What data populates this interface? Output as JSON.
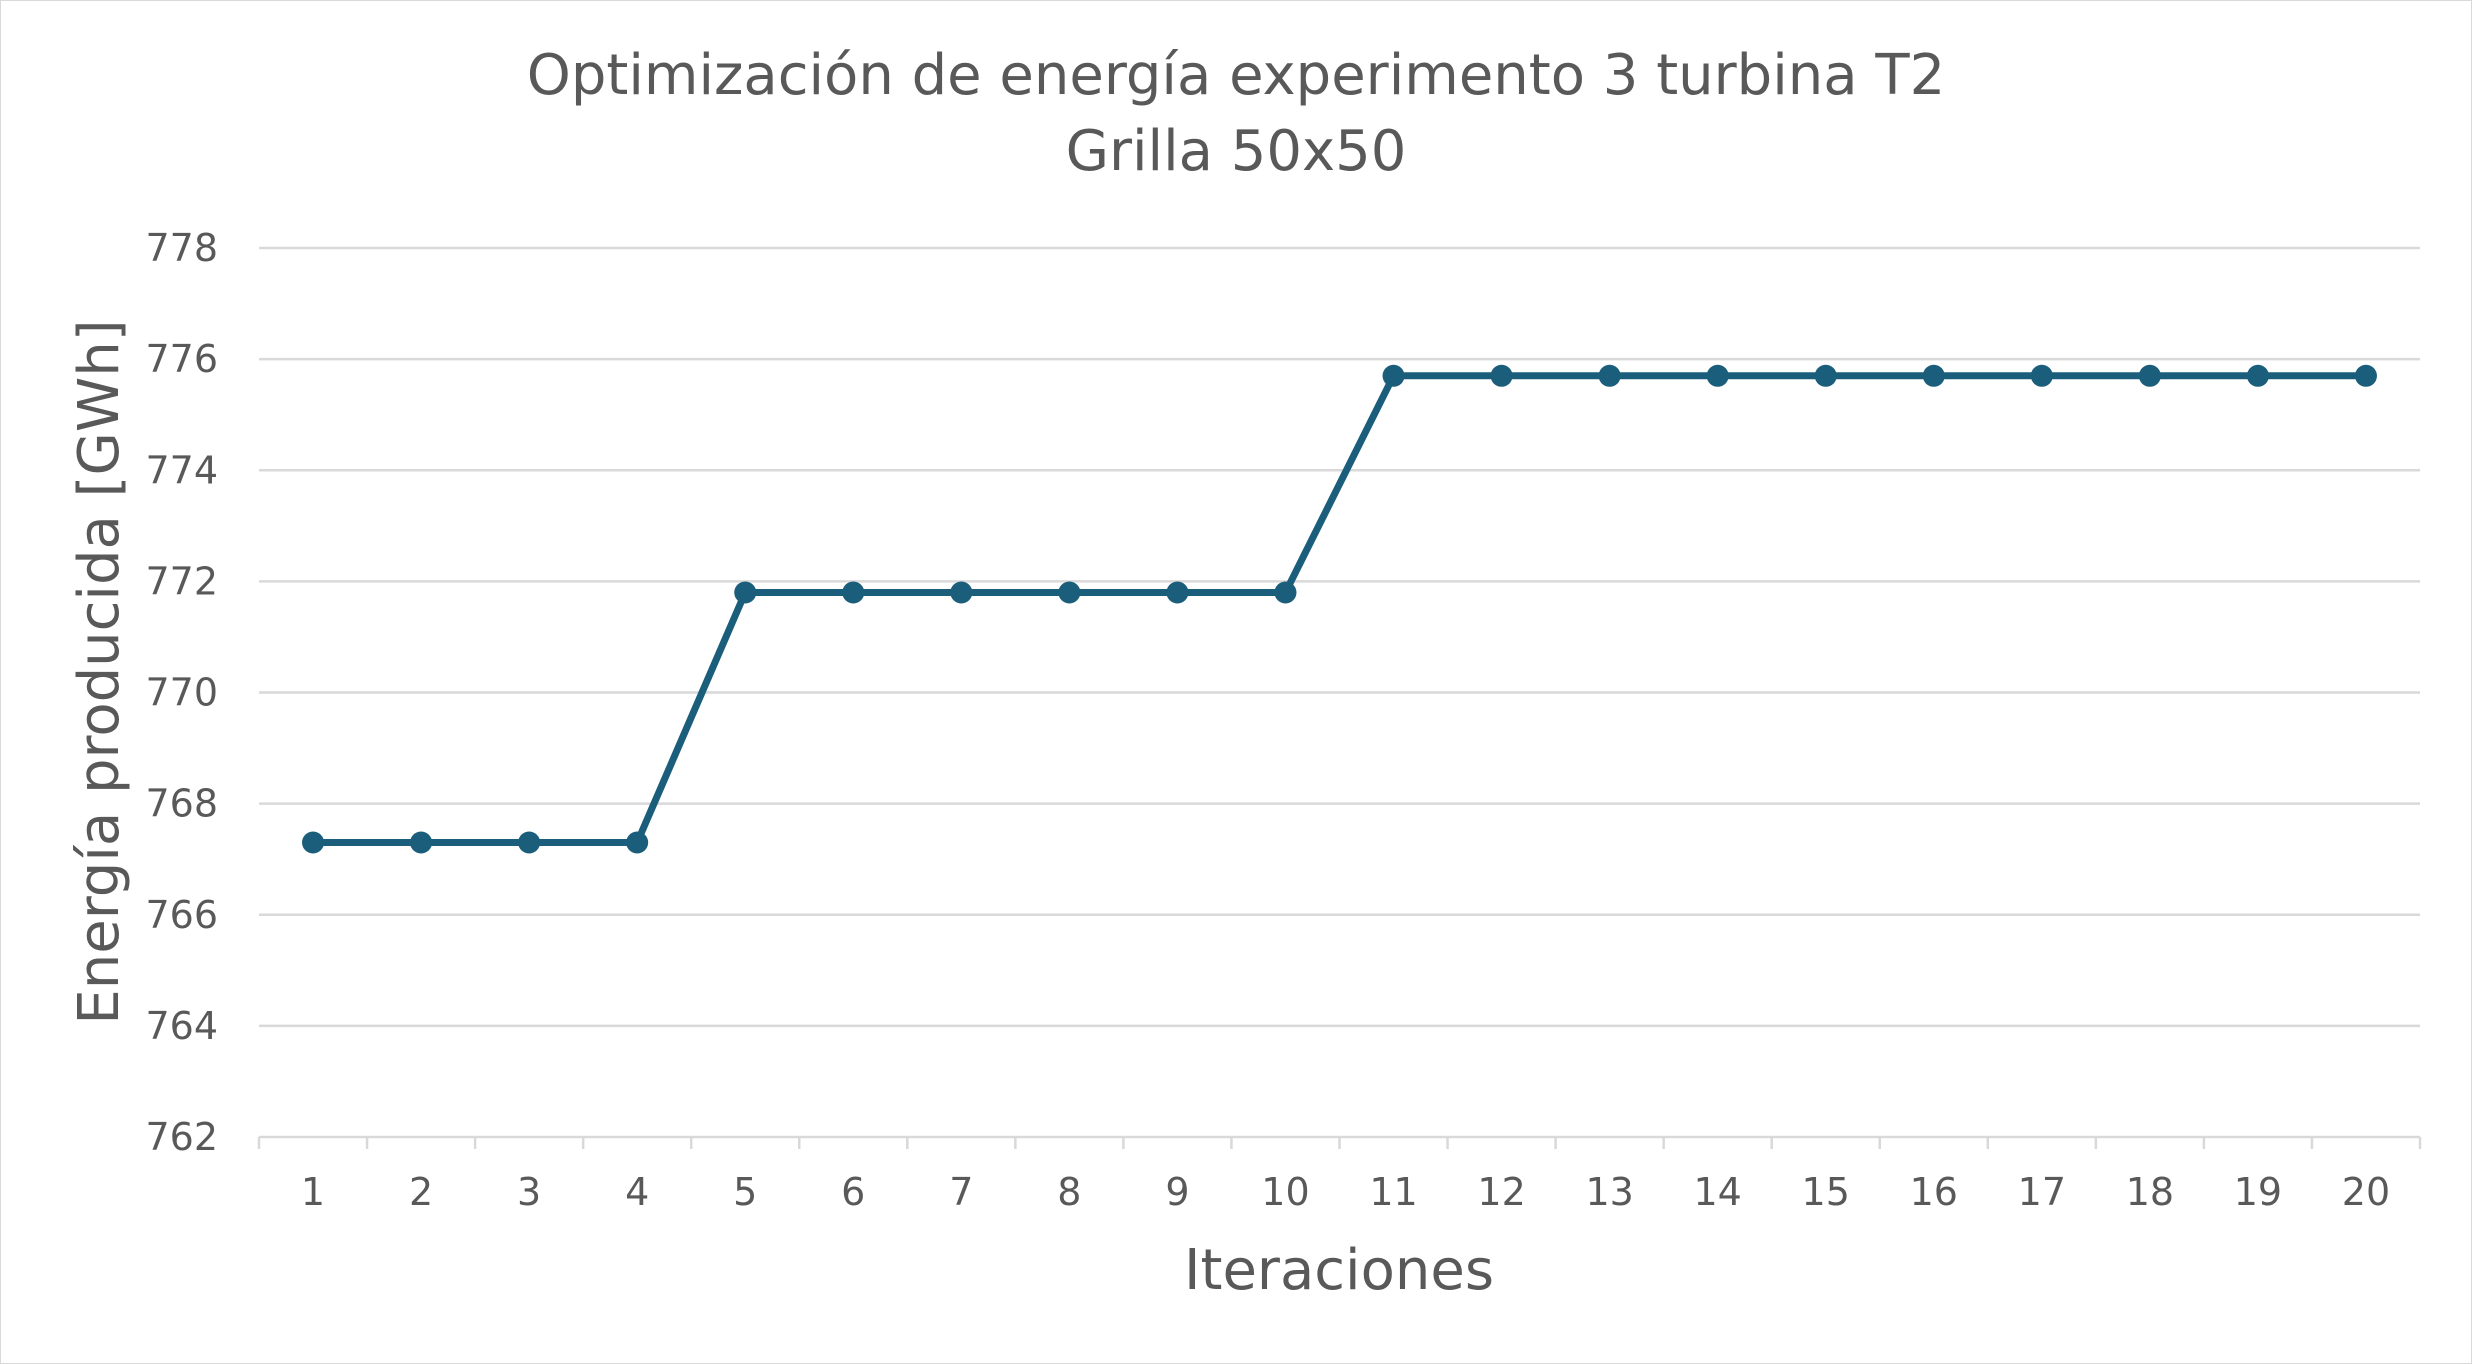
{
  "chart_data": {
    "type": "line",
    "title": [
      "Optimización de energía experimento 3 turbina T2",
      "Grilla 50x50"
    ],
    "xlabel": "Iteraciones",
    "ylabel": "Energía producida [GWh]",
    "categories": [
      "1",
      "2",
      "3",
      "4",
      "5",
      "6",
      "7",
      "8",
      "9",
      "10",
      "11",
      "12",
      "13",
      "14",
      "15",
      "16",
      "17",
      "18",
      "19",
      "20"
    ],
    "series": [
      {
        "values": [
          767.3,
          767.3,
          767.3,
          767.3,
          771.8,
          771.8,
          771.8,
          771.8,
          771.8,
          771.8,
          775.7,
          775.7,
          775.7,
          775.7,
          775.7,
          775.7,
          775.7,
          775.7,
          775.7,
          775.7
        ],
        "color": "#1b5e7b"
      }
    ],
    "ylim": [
      762,
      778
    ],
    "yticks": [
      "762",
      "764",
      "766",
      "768",
      "770",
      "772",
      "774",
      "776",
      "778"
    ],
    "grid": true,
    "legend": "none",
    "colors": {
      "gridline": "#d9d9d9",
      "text": "#595959",
      "series": "#1b5e7b"
    }
  }
}
